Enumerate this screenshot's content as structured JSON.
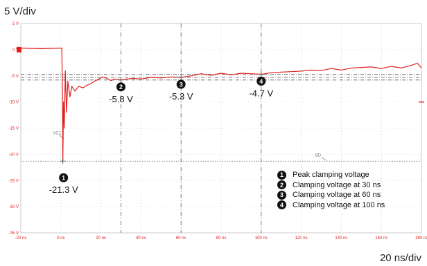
{
  "y_scale_label": "5 V/div",
  "x_scale_label": "20 ns/div",
  "colors": {
    "trace": "#e02020",
    "axis_text": "#e02020",
    "grid": "#bfbfbf",
    "cursor": "#555555",
    "marker": "#111111"
  },
  "chart_data": {
    "type": "line",
    "xlim": [
      -20,
      180
    ],
    "ylim": [
      -35,
      5
    ],
    "x_ticks": [
      "-20 ns",
      "0 ns",
      "20 ns",
      "40 ns",
      "60 ns",
      "80 ns",
      "100 ns",
      "120 ns",
      "140 ns",
      "160 ns",
      "180 ns"
    ],
    "y_ticks": [
      "5 V",
      "0 V",
      "-5 V",
      "-10 V",
      "-15 V",
      "-20 V",
      "-25 V",
      "-30 V",
      "-35 V"
    ],
    "grid": true,
    "reference_levels": [
      -4.7,
      -5.3,
      -5.8,
      -21.3
    ],
    "cursor_lines_x": [
      30,
      60,
      100
    ],
    "cursor_tags": [
      {
        "text": "VC1",
        "x": -4,
        "y": -16.2
      },
      {
        "text": "BD",
        "x": 127,
        "y": -20.4
      }
    ],
    "series": [
      {
        "points": [
          [
            -20,
            0.3
          ],
          [
            -10,
            0.2
          ],
          [
            0,
            0.3
          ],
          [
            0.5,
            0.3
          ],
          [
            0.8,
            -8
          ],
          [
            1,
            -21.3
          ],
          [
            1.3,
            -10
          ],
          [
            1.7,
            -15
          ],
          [
            2.2,
            -4
          ],
          [
            2.8,
            -12
          ],
          [
            3.5,
            -6
          ],
          [
            4.5,
            -9
          ],
          [
            5.5,
            -7
          ],
          [
            7,
            -7.9
          ],
          [
            9,
            -7
          ],
          [
            11,
            -7.3
          ],
          [
            13,
            -6.8
          ],
          [
            15,
            -6.5
          ],
          [
            17,
            -6
          ],
          [
            19,
            -5.6
          ],
          [
            21,
            -5.2
          ],
          [
            23,
            -5.5
          ],
          [
            25,
            -5.9
          ],
          [
            27,
            -5.6
          ],
          [
            30,
            -5.8
          ],
          [
            33,
            -5.6
          ],
          [
            36,
            -5.5
          ],
          [
            40,
            -5.6
          ],
          [
            45,
            -5.3
          ],
          [
            50,
            -5.4
          ],
          [
            55,
            -5.2
          ],
          [
            60,
            -5.3
          ],
          [
            65,
            -5.0
          ],
          [
            70,
            -4.6
          ],
          [
            75,
            -4.9
          ],
          [
            80,
            -4.5
          ],
          [
            85,
            -4.8
          ],
          [
            90,
            -4.5
          ],
          [
            95,
            -4.6
          ],
          [
            100,
            -4.7
          ],
          [
            105,
            -4.4
          ],
          [
            110,
            -4.3
          ],
          [
            115,
            -4.2
          ],
          [
            120,
            -4.1
          ],
          [
            125,
            -3.9
          ],
          [
            130,
            -4.0
          ],
          [
            135,
            -3.6
          ],
          [
            140,
            -3.9
          ],
          [
            145,
            -3.5
          ],
          [
            150,
            -3.4
          ],
          [
            155,
            -3.3
          ],
          [
            160,
            -3.6
          ],
          [
            165,
            -3.2
          ],
          [
            170,
            -3.5
          ],
          [
            175,
            -3.0
          ],
          [
            178,
            -2.6
          ],
          [
            180,
            -3.5
          ]
        ]
      }
    ],
    "annotations": [
      {
        "num": "1",
        "x": 1,
        "y": -21.3,
        "label": "-21.3 V"
      },
      {
        "num": "2",
        "x": 30,
        "y": -5.8,
        "label": "-5.8 V"
      },
      {
        "num": "3",
        "x": 60,
        "y": -5.3,
        "label": "-5.3 V"
      },
      {
        "num": "4",
        "x": 100,
        "y": -4.7,
        "label": "-4.7 V"
      }
    ],
    "legend": [
      {
        "num": "1",
        "text": "Peak clamping voltage"
      },
      {
        "num": "2",
        "text": "Clamping voltage at 30 ns"
      },
      {
        "num": "3",
        "text": "Clamping voltage at 60 ns"
      },
      {
        "num": "4",
        "text": "Clamping voltage at 100 ns"
      }
    ],
    "legend_position": "bottom-right"
  }
}
